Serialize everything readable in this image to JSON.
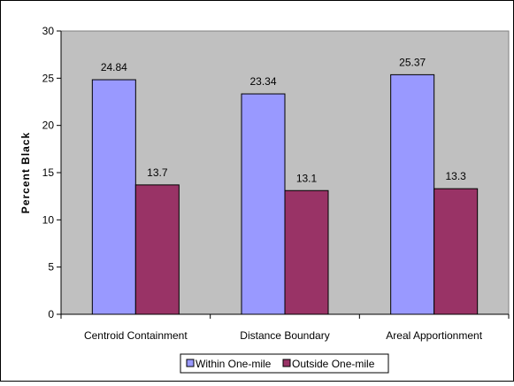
{
  "chart_data": {
    "type": "bar",
    "title": "",
    "xlabel": "",
    "ylabel": "Percent Black",
    "categories": [
      "Centroid Containment",
      "Distance Boundary",
      "Areal Apportionment"
    ],
    "series": [
      {
        "name": "Within One-mile",
        "values": [
          24.84,
          23.34,
          25.37
        ],
        "color": "#9999ff"
      },
      {
        "name": "Outside One-mile",
        "values": [
          13.7,
          13.1,
          13.3
        ],
        "color": "#993366"
      }
    ],
    "value_labels": [
      [
        "24.84",
        "23.34",
        "25.37"
      ],
      [
        "13.7",
        "13.1",
        "13.3"
      ]
    ],
    "ylim": [
      0,
      30
    ],
    "yticks": [
      0,
      5,
      10,
      15,
      20,
      25,
      30
    ],
    "grid": false,
    "plot_background": "#c0c0c0",
    "legend_position": "bottom"
  }
}
